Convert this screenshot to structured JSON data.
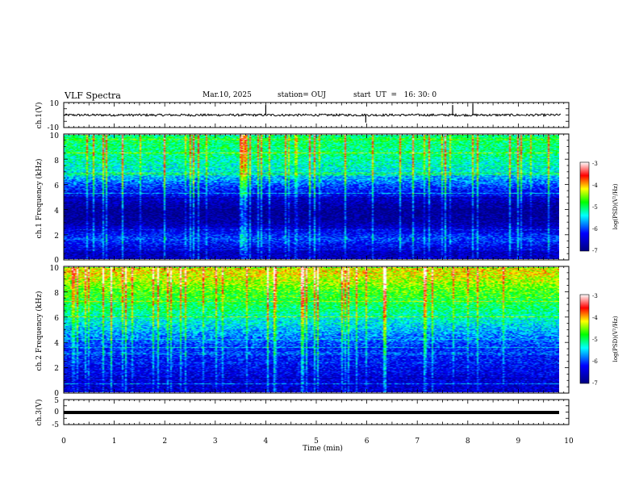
{
  "header": {
    "title": "VLF Spectra",
    "date": "Mar.10, 2025",
    "station": "station= OUJ",
    "start": "start  UT  =   16: 30: 0"
  },
  "colors": {
    "low": "#000080",
    "mid": "#00ffff",
    "green": "#00ff00",
    "yellow": "#ffff00",
    "high": "#ff0000",
    "top": "#ffffff"
  },
  "chart_data": [
    {
      "type": "line",
      "panel": "ch1-waveform",
      "ylabel": "ch.1(V)",
      "ylim": [
        -10,
        10
      ],
      "yticks": [
        "10",
        "-10"
      ],
      "x_range": [
        0,
        9.85
      ],
      "baseline": 0,
      "spikes": [
        {
          "x": 4.0,
          "y": 8
        },
        {
          "x": 5.98,
          "y": -6
        },
        {
          "x": 7.7,
          "y": 8
        },
        {
          "x": 8.1,
          "y": 9
        }
      ]
    },
    {
      "type": "heatmap",
      "panel": "ch1-spectrogram",
      "ylabel": "ch.1\nFrequency (kHz)",
      "ylim": [
        0,
        10
      ],
      "yticks": [
        "0",
        "2",
        "4",
        "6",
        "8",
        "10"
      ],
      "x_range": [
        0,
        9.85
      ],
      "colorbar": {
        "label": "log(PSD)(V²/Hz)",
        "range": [
          -7,
          -3
        ],
        "ticks": [
          "-3",
          "-4",
          "-5",
          "-6",
          "-7"
        ]
      },
      "dominant_level_by_freq": [
        {
          "f": 0.5,
          "level": -6.6
        },
        {
          "f": 1.6,
          "level": -6.0
        },
        {
          "f": 3.0,
          "level": -6.8
        },
        {
          "f": 4.0,
          "level": -6.9
        },
        {
          "f": 5.5,
          "level": -6.2
        },
        {
          "f": 7.0,
          "level": -5.4
        },
        {
          "f": 8.5,
          "level": -5.1
        },
        {
          "f": 9.8,
          "level": -5.0
        }
      ]
    },
    {
      "type": "heatmap",
      "panel": "ch2-spectrogram",
      "ylabel": "ch.2\nFrequency (kHz)",
      "ylim": [
        0,
        10
      ],
      "yticks": [
        "0",
        "2",
        "4",
        "6",
        "8",
        "10"
      ],
      "x_range": [
        0,
        9.85
      ],
      "colorbar": {
        "label": "log(PSD)(V²/Hz)",
        "range": [
          -7,
          -3
        ],
        "ticks": [
          "-3",
          "-4",
          "-5",
          "-6",
          "-7"
        ]
      },
      "dominant_level_by_freq": [
        {
          "f": 0.5,
          "level": -6.5
        },
        {
          "f": 2.0,
          "level": -6.3
        },
        {
          "f": 3.5,
          "level": -6.1
        },
        {
          "f": 5.0,
          "level": -5.6
        },
        {
          "f": 6.5,
          "level": -5.1
        },
        {
          "f": 8.0,
          "level": -4.7
        },
        {
          "f": 9.5,
          "level": -4.2
        }
      ]
    },
    {
      "type": "line",
      "panel": "ch3-waveform",
      "ylabel": "ch.3(V)",
      "ylim": [
        -5,
        5
      ],
      "yticks": [
        "5",
        "0",
        "-5"
      ],
      "x_range": [
        0,
        9.85
      ],
      "baseline": 0
    }
  ],
  "xaxis": {
    "label": "Time (min)",
    "ticks": [
      "0",
      "1",
      "2",
      "3",
      "4",
      "5",
      "6",
      "7",
      "8",
      "9",
      "10"
    ],
    "range": [
      0,
      10
    ]
  }
}
